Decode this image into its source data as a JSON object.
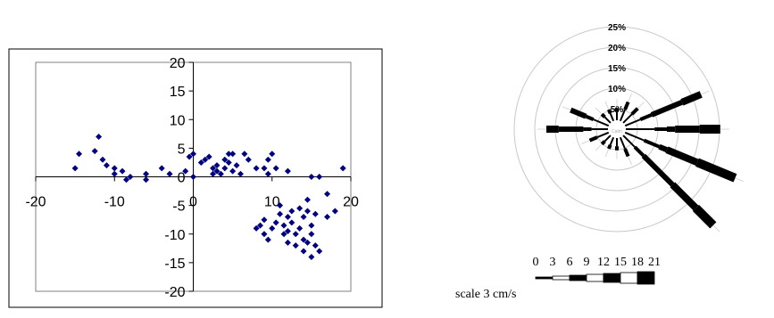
{
  "chart_data": [
    {
      "type": "scatter",
      "xlim": [
        -20,
        20
      ],
      "ylim": [
        -20,
        20
      ],
      "x_ticks": [
        "-20",
        "-10",
        "0",
        "10",
        "20"
      ],
      "y_ticks": [
        "20",
        "15",
        "10",
        "5",
        "0",
        "-5",
        "-10",
        "-15",
        "-20"
      ],
      "colors": {
        "marker": "#000080",
        "axis": "#000000",
        "frame": "#000000"
      },
      "points": [
        [
          -15,
          1.5
        ],
        [
          -14.5,
          4
        ],
        [
          -12.5,
          4.5
        ],
        [
          -12,
          7
        ],
        [
          -11.5,
          3
        ],
        [
          -11,
          2
        ],
        [
          -10,
          1.5
        ],
        [
          -10,
          0.5
        ],
        [
          -9,
          1
        ],
        [
          -8.5,
          -0.5
        ],
        [
          -8,
          0
        ],
        [
          -6,
          0.5
        ],
        [
          -6,
          -0.5
        ],
        [
          -4,
          1.5
        ],
        [
          -3,
          0.5
        ],
        [
          -1,
          1
        ],
        [
          -0.5,
          3.5
        ],
        [
          0,
          4
        ],
        [
          0,
          0
        ],
        [
          1,
          2.5
        ],
        [
          1.5,
          3
        ],
        [
          2,
          3.5
        ],
        [
          2.5,
          1.5
        ],
        [
          2.5,
          0.5
        ],
        [
          3,
          2
        ],
        [
          3,
          1
        ],
        [
          3.5,
          0.5
        ],
        [
          4,
          3
        ],
        [
          4,
          1.5
        ],
        [
          4.5,
          4
        ],
        [
          4.5,
          2.5
        ],
        [
          5,
          1
        ],
        [
          5,
          4
        ],
        [
          5.5,
          2
        ],
        [
          6,
          0.5
        ],
        [
          6.5,
          4
        ],
        [
          7,
          3
        ],
        [
          8,
          1.5
        ],
        [
          9,
          1.5
        ],
        [
          9.5,
          3
        ],
        [
          9.5,
          0.5
        ],
        [
          10,
          4
        ],
        [
          10.5,
          1.5
        ],
        [
          12,
          1
        ],
        [
          8,
          -9
        ],
        [
          8.5,
          -8.5
        ],
        [
          9,
          -7.5
        ],
        [
          9,
          -10
        ],
        [
          9.5,
          -11
        ],
        [
          10,
          -9
        ],
        [
          10.5,
          -8
        ],
        [
          11,
          -5
        ],
        [
          11,
          -6.5
        ],
        [
          11.5,
          -8.5
        ],
        [
          11.5,
          -10
        ],
        [
          12,
          -7
        ],
        [
          12,
          -9.5
        ],
        [
          12,
          -11.5
        ],
        [
          12.5,
          -6
        ],
        [
          12.5,
          -8
        ],
        [
          13,
          -10
        ],
        [
          13,
          -12
        ],
        [
          13.5,
          -5.5
        ],
        [
          13.5,
          -9
        ],
        [
          14,
          -7
        ],
        [
          14,
          -11
        ],
        [
          14,
          -13
        ],
        [
          14.5,
          -6
        ],
        [
          14.5,
          -11.5
        ],
        [
          15,
          -8.5
        ],
        [
          15,
          -10
        ],
        [
          15,
          -14
        ],
        [
          15.5,
          -6.5
        ],
        [
          15.5,
          -12
        ],
        [
          16,
          -13
        ],
        [
          14.5,
          -4
        ],
        [
          15,
          0
        ],
        [
          16,
          0
        ],
        [
          17,
          -3
        ],
        [
          17,
          -7
        ],
        [
          18,
          -6
        ],
        [
          19,
          1.5
        ]
      ]
    },
    {
      "type": "rose",
      "ring_labels": [
        "25%",
        "20%",
        "15%",
        "10%",
        "5%"
      ],
      "ring_values": [
        25,
        20,
        15,
        10,
        5
      ],
      "center_label": "Calm",
      "scale_title": "scale 3 cm/s",
      "scale_ticks": [
        "0",
        "3",
        "6",
        "9",
        "12",
        "15",
        "18",
        "21"
      ],
      "speed_widths": [
        1,
        2,
        3,
        4,
        5,
        6,
        7
      ],
      "colors": {
        "ring": "#c8c8c8",
        "bar": "#000000",
        "outline": "#bdbdbd"
      },
      "directions_deg": [
        0,
        22.5,
        45,
        67.5,
        90,
        112.5,
        135,
        157.5,
        180,
        202.5,
        225,
        247.5,
        270,
        292.5,
        315,
        337.5
      ],
      "bins": [
        [
          2,
          1,
          0,
          0,
          0,
          0,
          0
        ],
        [
          3,
          2,
          0,
          0,
          0,
          0,
          0
        ],
        [
          3,
          2,
          0,
          0,
          0,
          0,
          0
        ],
        [
          4,
          3,
          8,
          5,
          0,
          0,
          0
        ],
        [
          7,
          3,
          2,
          6,
          5,
          0,
          0
        ],
        [
          5,
          4,
          2,
          8,
          10,
          0,
          0
        ],
        [
          4,
          3,
          10,
          8,
          6,
          0,
          0
        ],
        [
          3,
          2,
          0,
          0,
          0,
          0,
          0
        ],
        [
          2,
          1,
          0,
          0,
          0,
          0,
          0
        ],
        [
          2,
          1,
          0,
          0,
          0,
          0,
          0
        ],
        [
          2,
          1,
          0,
          0,
          0,
          0,
          0
        ],
        [
          3,
          2,
          0,
          0,
          0,
          0,
          0
        ],
        [
          4,
          2,
          6,
          3,
          0,
          0,
          0
        ],
        [
          4,
          2,
          4,
          0,
          0,
          0,
          0
        ],
        [
          2,
          1,
          0,
          0,
          0,
          0,
          0
        ],
        [
          2,
          1,
          0,
          0,
          0,
          0,
          0
        ]
      ]
    }
  ]
}
